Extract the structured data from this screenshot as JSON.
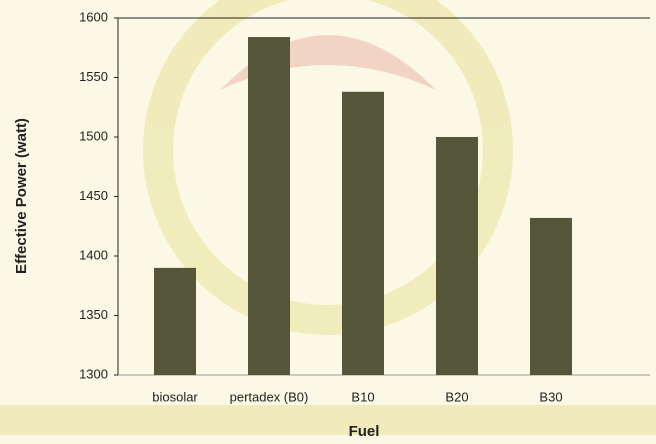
{
  "chart_data": {
    "type": "bar",
    "x_label": "Fuel",
    "y_label": "Effective Power (watt)",
    "categories": [
      "biosolar",
      "pertadex (B0)",
      "B10",
      "B20",
      "B30"
    ],
    "values": [
      1390,
      1584,
      1538,
      1500,
      1432
    ],
    "color": "#55553a",
    "ylim": [
      1300,
      1600
    ],
    "yticks": [
      1300,
      1350,
      1400,
      1450,
      1500,
      1550,
      1600
    ],
    "grid": false
  }
}
